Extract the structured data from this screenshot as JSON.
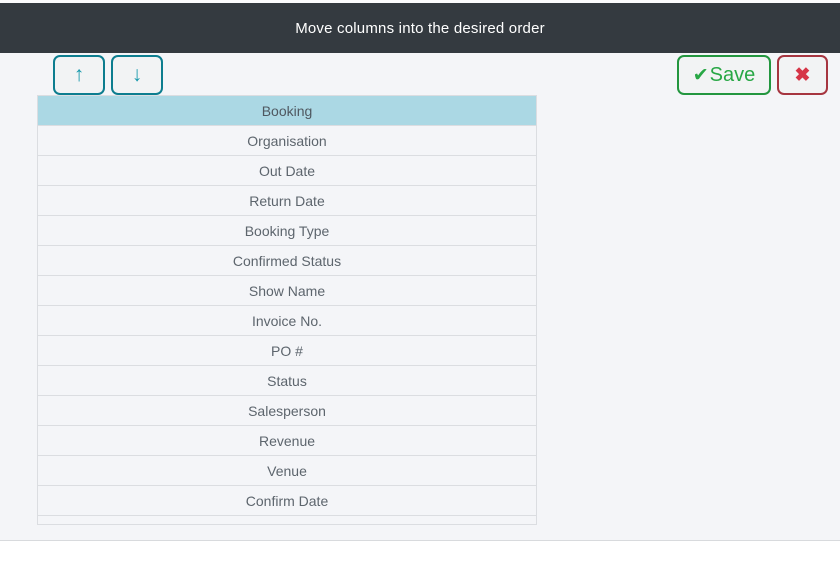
{
  "header": {
    "title": "Move columns into the desired order"
  },
  "toolbar": {
    "move_up_icon": "↑",
    "move_down_icon": "↓",
    "save_icon": "✔",
    "save_label": "Save",
    "close_icon": "✖"
  },
  "columns": {
    "selected_index": 0,
    "items": [
      "Booking",
      "Organisation",
      "Out Date",
      "Return Date",
      "Booking Type",
      "Confirmed Status",
      "Show Name",
      "Invoice No.",
      "PO #",
      "Status",
      "Salesperson",
      "Revenue",
      "Venue",
      "Confirm Date"
    ]
  },
  "colors": {
    "header_bg": "#343a40",
    "body_bg": "#f4f5f8",
    "selected_row_bg": "#abd8e4",
    "teal": "#1899ac",
    "teal_border": "#0d7d8f",
    "green": "#28a745",
    "green_border": "#23963f",
    "red": "#d63547",
    "red_border": "#a63540"
  }
}
